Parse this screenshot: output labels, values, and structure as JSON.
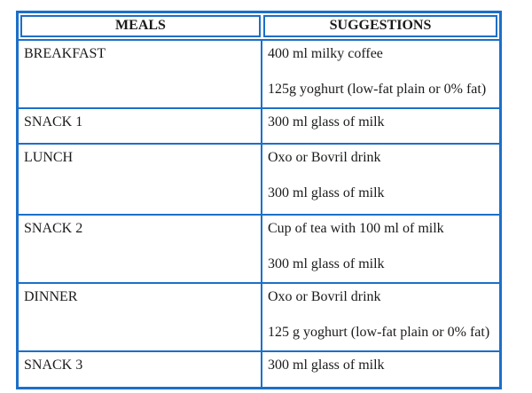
{
  "colors": {
    "border_blue": "#1C6FC8",
    "text": "#1A1A1A",
    "page_background": "#FFFFFF"
  },
  "table": {
    "headers": [
      {
        "label": "MEALS"
      },
      {
        "label": "SUGGESTIONS"
      }
    ],
    "rows": [
      {
        "meal": "BREAKFAST",
        "suggestions": [
          "400 ml milky coffee",
          "125g yoghurt (low-fat plain or 0% fat)"
        ]
      },
      {
        "meal": "SNACK 1",
        "suggestions": [
          "300 ml glass of milk"
        ]
      },
      {
        "meal": "LUNCH",
        "suggestions": [
          "Oxo or Bovril drink",
          "300 ml glass of milk"
        ]
      },
      {
        "meal": "SNACK 2",
        "suggestions": [
          "Cup of tea with 100 ml of milk",
          "300 ml glass of milk"
        ]
      },
      {
        "meal": "DINNER",
        "suggestions": [
          "Oxo or Bovril drink",
          "125 g yoghurt (low-fat plain or 0% fat)"
        ]
      },
      {
        "meal": "SNACK 3",
        "suggestions": [
          "300 ml glass of milk"
        ]
      }
    ]
  }
}
